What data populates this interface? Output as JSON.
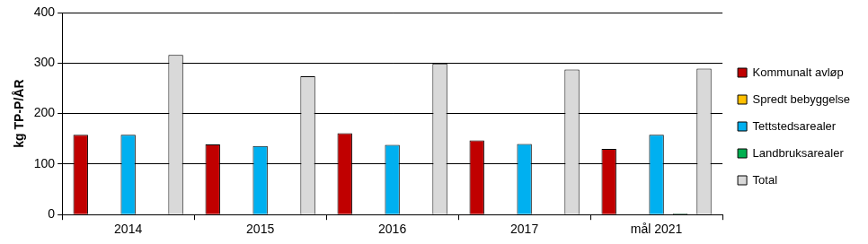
{
  "chart_data": {
    "type": "bar",
    "y_label": "kg TP-P/ÅR",
    "categories": [
      "2014",
      "2015",
      "2016",
      "2017",
      "mål 2021"
    ],
    "series": [
      {
        "name": "Kommunalt avløp",
        "color": "#c00000",
        "values": [
          158,
          139,
          161,
          147,
          130
        ]
      },
      {
        "name": "Spredt bebyggelse",
        "color": "#ffc000",
        "values": [
          0,
          0,
          0,
          0,
          0
        ]
      },
      {
        "name": "Tettstedsarealer",
        "color": "#00b0f0",
        "values": [
          158,
          136,
          138,
          140,
          158
        ]
      },
      {
        "name": "Landbruksarealer",
        "color": "#00b050",
        "values": [
          0,
          0,
          0,
          0,
          2
        ]
      },
      {
        "name": "Total",
        "color": "#d9d9d9",
        "values": [
          316,
          274,
          299,
          287,
          289
        ]
      }
    ],
    "ylim": [
      0,
      400
    ],
    "yticks": [
      0,
      100,
      200,
      300,
      400
    ],
    "grid": true,
    "legend": "right"
  }
}
